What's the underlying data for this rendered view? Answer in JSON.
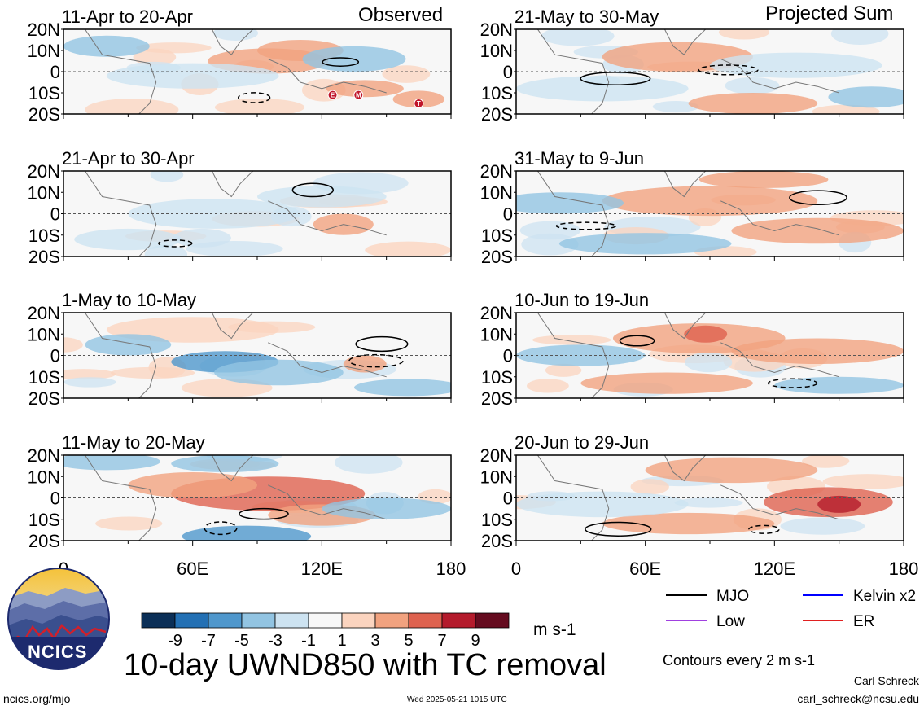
{
  "header": {
    "observed_label": "Observed",
    "projected_label": "Projected Sum"
  },
  "chart_data": {
    "type": "heatmap",
    "title": "10-day UWND850 with TC removal",
    "x_ticks": [
      "0",
      "60E",
      "120E",
      "180"
    ],
    "y_ticks": [
      "20N",
      "10N",
      "0",
      "10S",
      "20S"
    ],
    "xlim": [
      0,
      180
    ],
    "ylim": [
      -20,
      20
    ],
    "panels": [
      {
        "period": "11-Apr to 20-Apr",
        "column": "observed",
        "tc_markers": [
          "E",
          "M",
          "T"
        ]
      },
      {
        "period": "21-Apr to 30-Apr",
        "column": "observed"
      },
      {
        "period": "1-May to 10-May",
        "column": "observed"
      },
      {
        "period": "11-May to 20-May",
        "column": "observed"
      },
      {
        "period": "21-May to 30-May",
        "column": "projected"
      },
      {
        "period": "31-May to 9-Jun",
        "column": "projected"
      },
      {
        "period": "10-Jun to 19-Jun",
        "column": "projected"
      },
      {
        "period": "20-Jun to 29-Jun",
        "column": "projected"
      }
    ],
    "colorbar": {
      "tick_labels": [
        "-9",
        "-7",
        "-5",
        "-3",
        "-1",
        "1",
        "3",
        "5",
        "7",
        "9"
      ],
      "colors": [
        "#0b2f57",
        "#2370b4",
        "#4f97cc",
        "#92c4e2",
        "#cde3f1",
        "#f7f7f7",
        "#fbd4bf",
        "#f1a27f",
        "#de624f",
        "#b41b2c",
        "#650b1f"
      ],
      "units": "m s-1"
    },
    "legend": [
      {
        "label": "MJO",
        "color": "#000000"
      },
      {
        "label": "Kelvin x2",
        "color": "#0000ff"
      },
      {
        "label": "Low",
        "color": "#a040e0"
      },
      {
        "label": "ER",
        "color": "#e02020"
      }
    ],
    "contour_note": "Contours every 2 m s-1"
  },
  "footer": {
    "logo_text": "NCICS",
    "site": "ncics.org/mjo",
    "timestamp": "Wed 2025-05-21 1015 UTC",
    "author": "Carl Schreck",
    "email": "carl_schreck@ncsu.edu"
  }
}
